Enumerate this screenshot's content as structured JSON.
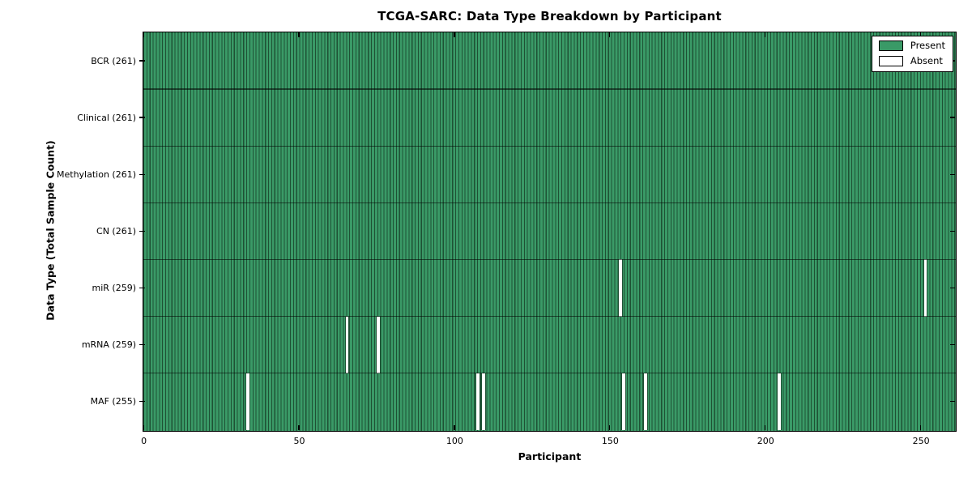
{
  "title": "TCGA-SARC: Data Type Breakdown by Participant",
  "legend": {
    "present_label": "Present",
    "absent_label": "Absent",
    "position": "upper right"
  },
  "colors": {
    "present_fill": "#3a9a67",
    "present_edge": "#1e5134",
    "absent_fill": "#ffffff",
    "axis": "#000000"
  },
  "chart_data": {
    "type": "heatmap",
    "title": "TCGA-SARC: Data Type Breakdown by Participant",
    "xlabel": "Participant",
    "ylabel": "Data Type (Total Sample Count)",
    "xlim": [
      0,
      261
    ],
    "x_ticks": [
      0,
      50,
      100,
      150,
      200,
      250
    ],
    "n_participants": 261,
    "grid": false,
    "legend_entries": [
      "Present",
      "Absent"
    ],
    "rows": [
      {
        "label": "BCR (261)",
        "data_type": "BCR",
        "total": 261,
        "absent_participants": []
      },
      {
        "label": "Clinical (261)",
        "data_type": "Clinical",
        "total": 261,
        "absent_participants": []
      },
      {
        "label": "Methylation (261)",
        "data_type": "Methylation",
        "total": 261,
        "absent_participants": []
      },
      {
        "label": "CN (261)",
        "data_type": "CN",
        "total": 261,
        "absent_participants": []
      },
      {
        "label": "miR (259)",
        "data_type": "miR",
        "total": 259,
        "absent_participants": [
          153,
          251
        ]
      },
      {
        "label": "mRNA (259)",
        "data_type": "mRNA",
        "total": 259,
        "absent_participants": [
          65,
          75
        ]
      },
      {
        "label": "MAF (255)",
        "data_type": "MAF",
        "total": 255,
        "absent_participants": [
          33,
          107,
          109,
          154,
          161,
          204
        ]
      }
    ]
  }
}
